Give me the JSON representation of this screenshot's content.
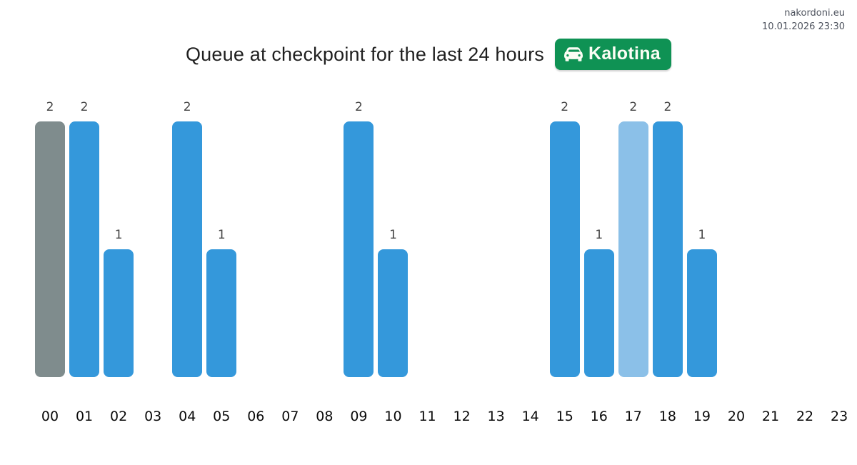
{
  "header": {
    "site": "nakordoni.eu",
    "datetime": "10.01.2026 23:30"
  },
  "title": {
    "text": "Queue at checkpoint for the last 24 hours",
    "badge_label": "Kalotina"
  },
  "colors": {
    "badge_green": "#0f9254",
    "badge_text": "#fbfdf4",
    "bar_blue": "#3498db",
    "bar_gray": "#7f8c8d",
    "bar_light_blue": "#8bc0e8",
    "value_label": "#454545",
    "axis_label": "#0a0a0a",
    "meta_text": "#4e535e",
    "title_text": "#1f1f1f"
  },
  "chart_data": {
    "type": "bar",
    "title": "Queue at checkpoint for the last 24 hours",
    "xlabel": "",
    "ylabel": "",
    "categories": [
      "00",
      "01",
      "02",
      "03",
      "04",
      "05",
      "06",
      "07",
      "08",
      "09",
      "10",
      "11",
      "12",
      "13",
      "14",
      "15",
      "16",
      "17",
      "18",
      "19",
      "20",
      "21",
      "22",
      "23"
    ],
    "values": [
      2,
      2,
      1,
      null,
      2,
      1,
      null,
      null,
      null,
      2,
      1,
      null,
      null,
      null,
      null,
      2,
      1,
      2,
      2,
      1,
      null,
      null,
      null,
      null
    ],
    "bar_color_keys": [
      "gray",
      "blue",
      "blue",
      null,
      "blue",
      "blue",
      null,
      null,
      null,
      "blue",
      "blue",
      null,
      null,
      null,
      null,
      "blue",
      "blue",
      "light",
      "blue",
      "blue",
      null,
      null,
      null,
      null
    ],
    "ylim": [
      0,
      2
    ],
    "grid": false,
    "legend": false,
    "value_labels_shown": true
  }
}
